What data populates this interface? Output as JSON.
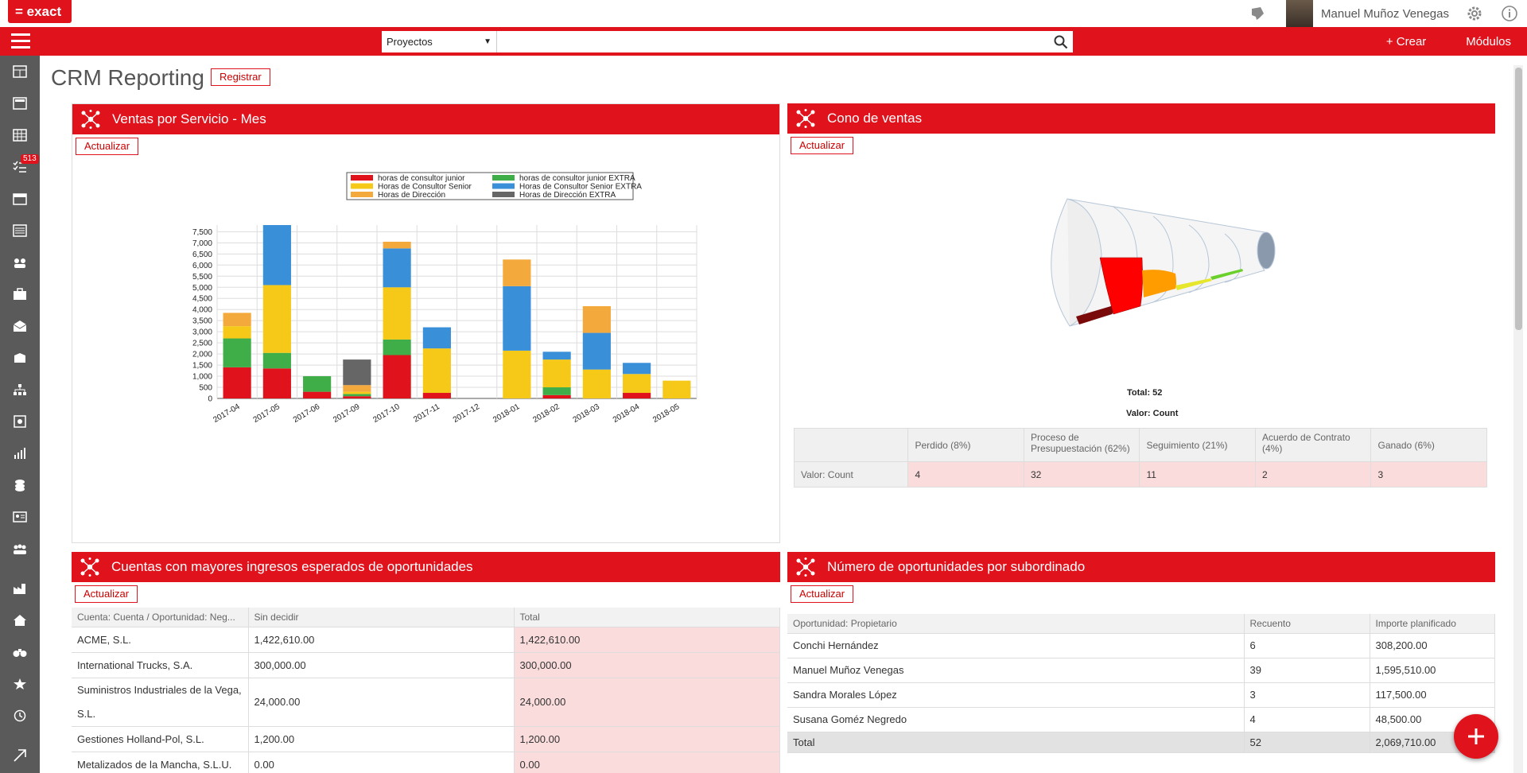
{
  "app": {
    "logo": "= exact",
    "user": "Manuel Muñoz Venegas"
  },
  "topnav": {
    "search_scope": "Proyectos",
    "search_value": "",
    "create_label": "+ Crear",
    "modules_label": "Módulos"
  },
  "sidebar": {
    "task_badge": "513"
  },
  "page": {
    "title": "CRM Reporting",
    "register_label": "Registrar"
  },
  "update_label": "Actualizar",
  "panels": {
    "sales": {
      "title": "Ventas por Servicio - Mes"
    },
    "funnel": {
      "title": "Cono de ventas",
      "total_label": "Total: 52",
      "value_label": "Valor: Count"
    },
    "accounts": {
      "title": "Cuentas con mayores ingresos esperados de oportunidades"
    },
    "subordinates": {
      "title": "Número de oportunidades por subordinado"
    }
  },
  "chart_data": {
    "type": "bar",
    "stacked": true,
    "categories": [
      "2017-04",
      "2017-05",
      "2017-06",
      "2017-09",
      "2017-10",
      "2017-11",
      "2017-12",
      "2018-01",
      "2018-02",
      "2018-03",
      "2018-04",
      "2018-05"
    ],
    "yticks": [
      "0",
      "500",
      "1,000",
      "1,500",
      "2,000",
      "2,500",
      "3,000",
      "3,500",
      "4,000",
      "4,500",
      "5,000",
      "5,500",
      "6,000",
      "6,500",
      "7,000",
      "7,500"
    ],
    "ylim": [
      0,
      7800
    ],
    "legend_position": "top",
    "series": [
      {
        "name": "horas de consultor junior",
        "color": "#e0121c",
        "values": [
          1400,
          1350,
          300,
          100,
          1950,
          250,
          0,
          0,
          150,
          0,
          250,
          0
        ]
      },
      {
        "name": "horas de consultor junior EXTRA",
        "color": "#3fae49",
        "values": [
          1300,
          700,
          700,
          100,
          700,
          0,
          0,
          0,
          350,
          0,
          0,
          0
        ]
      },
      {
        "name": "Horas de Consultor Senior",
        "color": "#f6c918",
        "values": [
          550,
          3050,
          0,
          100,
          2350,
          2000,
          0,
          2150,
          1250,
          1300,
          850,
          800
        ]
      },
      {
        "name": "Horas de Consultor Senior EXTRA",
        "color": "#3a8fd9",
        "values": [
          0,
          2700,
          0,
          0,
          1750,
          950,
          0,
          2900,
          350,
          1650,
          500,
          0
        ]
      },
      {
        "name": "Horas de Dirección",
        "color": "#f4a93c",
        "values": [
          600,
          0,
          0,
          300,
          300,
          0,
          0,
          1200,
          0,
          1200,
          0,
          0
        ]
      },
      {
        "name": "Horas de Dirección EXTRA",
        "color": "#666666",
        "values": [
          0,
          0,
          0,
          1150,
          0,
          0,
          0,
          0,
          0,
          0,
          0,
          0
        ]
      }
    ]
  },
  "funnel_table": {
    "row_label": "Valor: Count",
    "columns": [
      "Perdido (8%)",
      "Proceso de Presupuestación (62%)",
      "Seguimiento (21%)",
      "Acuerdo de Contrato (4%)",
      "Ganado (6%)"
    ],
    "values": [
      "4",
      "32",
      "11",
      "2",
      "3"
    ]
  },
  "accounts_table": {
    "headers": [
      "Cuenta: Cuenta / Oportunidad: Neg...",
      "Sin decidir",
      "Total"
    ],
    "rows": [
      [
        "ACME, S.L.",
        "1,422,610.00",
        "1,422,610.00"
      ],
      [
        "International Trucks, S.A.",
        "300,000.00",
        "300,000.00"
      ],
      [
        "Suministros Industriales de la Vega, S.L.",
        "24,000.00",
        "24,000.00"
      ],
      [
        "Gestiones Holland-Pol, S.L.",
        "1,200.00",
        "1,200.00"
      ],
      [
        "Metalizados de la Mancha, S.L.U.",
        "0.00",
        "0.00"
      ]
    ]
  },
  "subordinates_table": {
    "headers": [
      "Oportunidad: Propietario",
      "Recuento",
      "Importe planificado"
    ],
    "rows": [
      [
        "Conchi Hernández",
        "6",
        "308,200.00"
      ],
      [
        "Manuel Muñoz Venegas",
        "39",
        "1,595,510.00"
      ],
      [
        "Sandra Morales López",
        "3",
        "117,500.00"
      ],
      [
        "Susana Goméz Negredo",
        "4",
        "48,500.00"
      ]
    ],
    "total": [
      "Total",
      "52",
      "2,069,710.00"
    ]
  }
}
